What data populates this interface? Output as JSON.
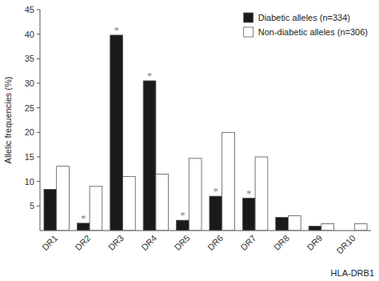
{
  "chart_data": {
    "type": "bar",
    "ylabel": "Allelic frequencies (%)",
    "xlabel": "HLA-DRB1",
    "categories": [
      "DR1",
      "DR2",
      "DR3",
      "DR4",
      "DR5",
      "DR6",
      "DR7",
      "DR8",
      "DR9",
      "DR10"
    ],
    "series": [
      {
        "name": "Diabetic alleles (n=334)",
        "color": "#1a1a1a",
        "values": [
          8.4,
          1.5,
          39.8,
          30.5,
          2.1,
          7.0,
          6.6,
          2.7,
          0.9,
          0.0
        ]
      },
      {
        "name": "Non-diabetic alleles (n=306)",
        "color": "#ffffff",
        "values": [
          13.1,
          9.0,
          11.0,
          11.5,
          14.7,
          20.0,
          15.0,
          3.0,
          1.4,
          1.4
        ]
      }
    ],
    "annotations": [
      {
        "text": "*",
        "series": "Diabetic alleles (n=334)",
        "x": "DR2",
        "y": 1.5
      },
      {
        "text": "*",
        "series": "Diabetic alleles (n=334)",
        "x": "DR3",
        "y": 39.8
      },
      {
        "text": "*",
        "series": "Diabetic alleles (n=334)",
        "x": "DR4",
        "y": 30.5
      },
      {
        "text": "*",
        "series": "Diabetic alleles (n=334)",
        "x": "DR5",
        "y": 2.1
      },
      {
        "text": "*",
        "series": "Diabetic alleles (n=334)",
        "x": "DR6",
        "y": 7.0
      },
      {
        "text": "*",
        "series": "Diabetic alleles (n=334)",
        "x": "DR7",
        "y": 6.6
      }
    ],
    "ylim": [
      0,
      45
    ],
    "yticks": [
      5,
      10,
      15,
      20,
      25,
      30,
      35,
      40,
      45
    ],
    "grid": false,
    "legend": "upper right"
  }
}
